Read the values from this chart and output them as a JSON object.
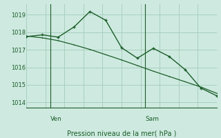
{
  "bg_color": "#ceeae0",
  "grid_color": "#a8cfc0",
  "line_color": "#1a5c28",
  "xlabel": "Pression niveau de la mer( hPa )",
  "ylim": [
    1013.7,
    1019.6
  ],
  "yticks": [
    1014,
    1015,
    1016,
    1017,
    1018,
    1019
  ],
  "xlim": [
    0,
    12
  ],
  "x_jagged": [
    0,
    1,
    2,
    3,
    4,
    5,
    6,
    7,
    8,
    9,
    10,
    11,
    12
  ],
  "y_jagged": [
    1017.75,
    1017.85,
    1017.72,
    1018.3,
    1019.18,
    1018.68,
    1017.12,
    1016.52,
    1017.08,
    1016.62,
    1015.88,
    1014.82,
    1014.38
  ],
  "x_trend": [
    0,
    1,
    2,
    3,
    4,
    5,
    6,
    7,
    8,
    9,
    10,
    11,
    12
  ],
  "y_trend": [
    1017.78,
    1017.68,
    1017.52,
    1017.28,
    1017.02,
    1016.72,
    1016.42,
    1016.1,
    1015.78,
    1015.48,
    1015.18,
    1014.88,
    1014.52
  ],
  "ven_x": 1.5,
  "sam_x": 7.5,
  "ven_label": "Ven",
  "sam_label": "Sam",
  "num_xcells": 10,
  "marker_size": 3.5
}
